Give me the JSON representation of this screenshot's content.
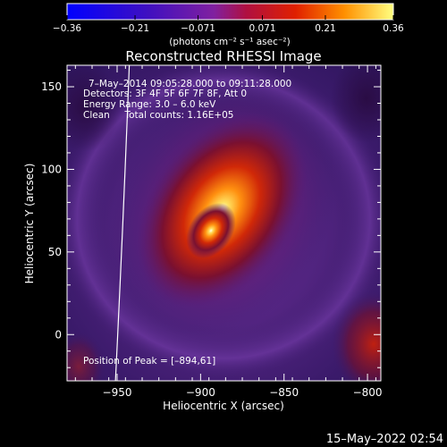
{
  "chart_data": {
    "type": "heatmap",
    "title": "Reconstructed RHESSI Image",
    "xlabel": "Heliocentric X (arcsec)",
    "ylabel": "Heliocentric Y (arcsec)",
    "xlim": [
      -980,
      -792
    ],
    "ylim": [
      -28,
      163
    ],
    "xticks": [
      -950,
      -900,
      -850,
      -800
    ],
    "yticks": [
      0,
      50,
      100,
      150
    ],
    "colorbar": {
      "ticks": [
        "-0.36",
        "-0.21",
        "-0.071",
        "0.071",
        "0.21",
        "0.36"
      ],
      "min": -0.36,
      "max": 0.36,
      "units": "(photons cm⁻² s⁻¹ asec⁻²)"
    },
    "annotations": {
      "time": "7–May–2014 09:05:28.000 to 09:11:28.000",
      "detectors": "Detectors: 3F 4F 5F 6F 7F 8F, Att 0",
      "energy": "Energy Range: 3.0 – 6.0 keV",
      "clean": "Clean     Total counts: 1.16E+05",
      "peak": "Position of Peak = [–894,61]"
    },
    "peak": {
      "x": -894,
      "y": 61
    },
    "limb_x_at_top": -947,
    "limb_x_at_bottom": -951
  },
  "footer": {
    "date": "15–May–2022 02:54"
  }
}
